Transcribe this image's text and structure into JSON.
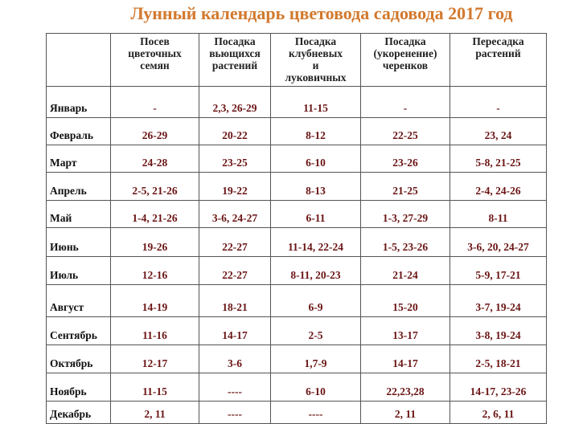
{
  "title": "Лунный календарь цветовода садовода 2017 год",
  "headers": [
    "",
    "Посев цветочных семян",
    "Посадка вьющихся растений",
    "Посадка клубневых и луковичных",
    "Посадка (укоренение) черенков",
    "Пересадка растений"
  ],
  "rows": [
    [
      "Январь",
      "-",
      "2,3, 26-29",
      "11-15",
      "-",
      "-"
    ],
    [
      "Февраль",
      "26-29",
      "20-22",
      "8-12",
      "22-25",
      "23, 24"
    ],
    [
      "Март",
      "24-28",
      "23-25",
      "6-10",
      "23-26",
      "5-8, 21-25"
    ],
    [
      "Апрель",
      "2-5, 21-26",
      "19-22",
      "8-13",
      "21-25",
      "2-4, 24-26"
    ],
    [
      "Май",
      "1-4, 21-26",
      "3-6, 24-27",
      "6-11",
      "1-3, 27-29",
      "8-11"
    ],
    [
      "Июнь",
      "19-26",
      "22-27",
      "11-14, 22-24",
      "1-5, 23-26",
      "3-6, 20, 24-27"
    ],
    [
      "Июль",
      "12-16",
      "22-27",
      "8-11, 20-23",
      "21-24",
      "5-9, 17-21"
    ],
    [
      "Август",
      "14-19",
      "18-21",
      "6-9",
      "15-20",
      "3-7, 19-24"
    ],
    [
      "Сентябрь",
      "11-16",
      "14-17",
      "2-5",
      "13-17",
      "3-8, 19-24"
    ],
    [
      "Октябрь",
      "12-17",
      "3-6",
      "1,7-9",
      "14-17",
      "2-5, 18-21"
    ],
    [
      "Ноябрь",
      "11-15",
      "----",
      "6-10",
      "22,23,28",
      "14-17, 23-26"
    ],
    [
      "Декабрь",
      "2, 11",
      "----",
      "----",
      "2, 11",
      "2, 6, 11"
    ]
  ]
}
